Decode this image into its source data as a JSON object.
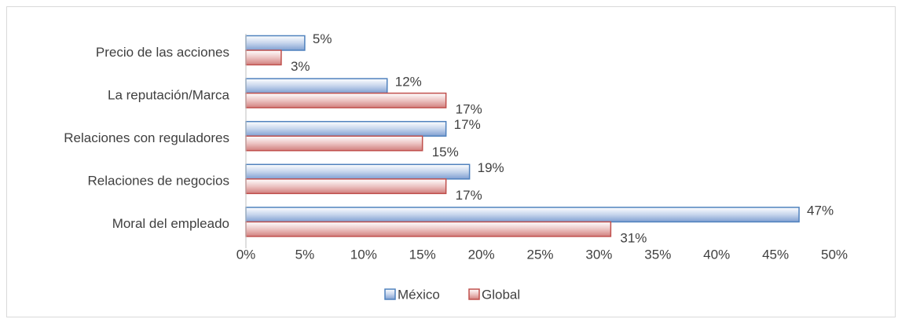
{
  "chart_data": {
    "type": "bar",
    "orientation": "horizontal",
    "categories": [
      "Precio de las acciones",
      "La reputación/Marca",
      "Relaciones con reguladores",
      "Relaciones de negocios",
      "Moral del empleado"
    ],
    "series": [
      {
        "name": "México",
        "values": [
          5,
          12,
          17,
          19,
          47
        ],
        "labels": [
          "5%",
          "12%",
          "17%",
          "19%",
          "47%"
        ],
        "color": "#4f81bd"
      },
      {
        "name": "Global",
        "values": [
          3,
          17,
          15,
          17,
          31
        ],
        "labels": [
          "3%",
          "17%",
          "15%",
          "17%",
          "31%"
        ],
        "color": "#c0504d"
      }
    ],
    "xlim": [
      0,
      50
    ],
    "xticks": [
      0,
      5,
      10,
      15,
      20,
      25,
      30,
      35,
      40,
      45,
      50
    ],
    "xtick_labels": [
      "0%",
      "5%",
      "10%",
      "15%",
      "20%",
      "25%",
      "30%",
      "35%",
      "40%",
      "45%",
      "50%"
    ],
    "grid": false,
    "legend_position": "bottom",
    "title": "",
    "xlabel": "",
    "ylabel": ""
  }
}
